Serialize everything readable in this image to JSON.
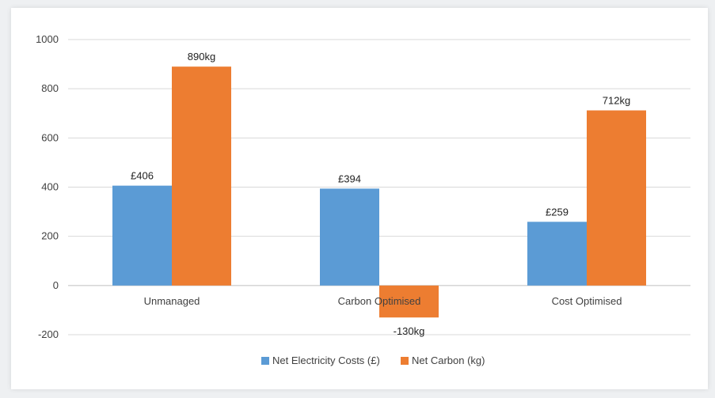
{
  "chart_data": {
    "type": "bar",
    "title": "",
    "xlabel": "",
    "ylabel": "",
    "categories": [
      "Unmanaged",
      "Carbon Optimised",
      "Cost Optimised"
    ],
    "series": [
      {
        "name": "Net Electricity Costs (£)",
        "values": [
          406,
          394,
          259
        ],
        "labels": [
          "£406",
          "£394",
          "£259"
        ],
        "color": "#5b9bd5"
      },
      {
        "name": "Net Carbon (kg)",
        "values": [
          890,
          -130,
          712
        ],
        "labels": [
          "890kg",
          "-130kg",
          "712kg"
        ],
        "color": "#ed7d31"
      }
    ],
    "ylim": [
      -200,
      1000
    ],
    "yticks": [
      1000,
      800,
      600,
      400,
      200,
      0,
      -200
    ],
    "grid": true,
    "legend_position": "bottom"
  }
}
